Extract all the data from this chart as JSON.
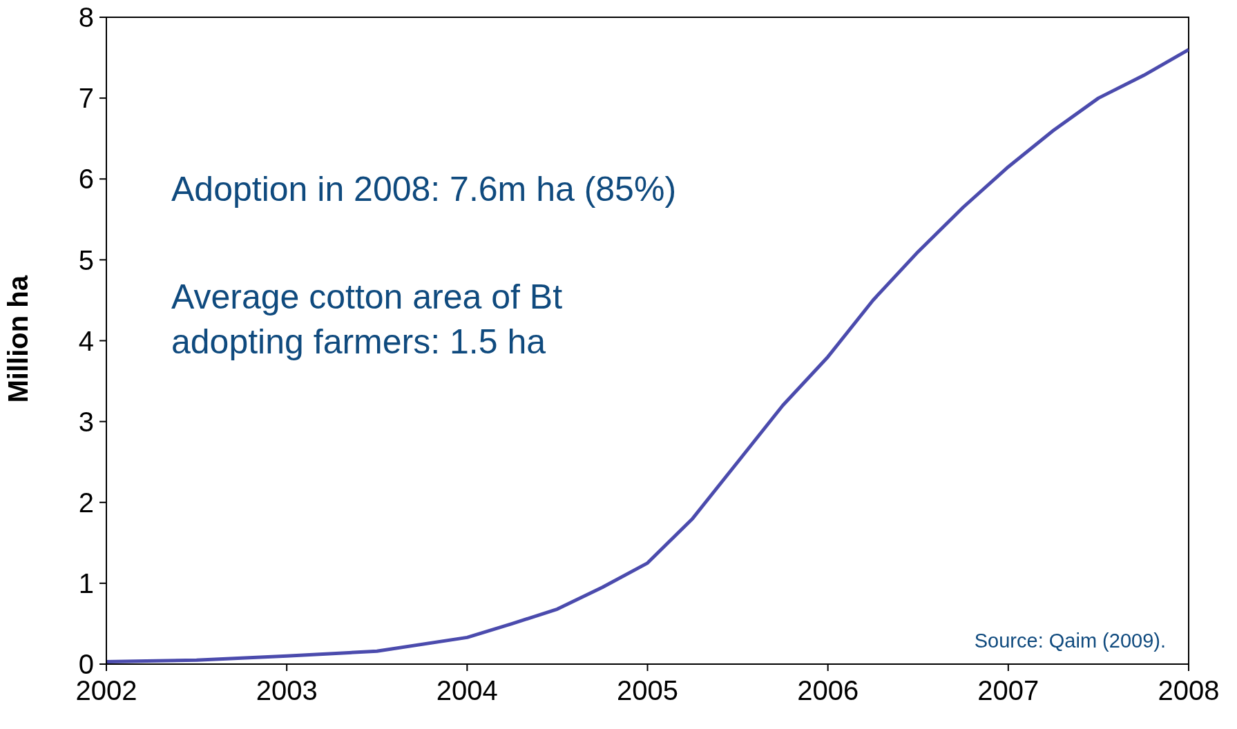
{
  "chart_data": {
    "type": "line",
    "ylabel": "Million ha",
    "x": [
      2002,
      2002.5,
      2003,
      2003.5,
      2004,
      2004.25,
      2004.5,
      2004.75,
      2005,
      2005.25,
      2005.5,
      2005.75,
      2006,
      2006.25,
      2006.5,
      2006.75,
      2007,
      2007.25,
      2007.5,
      2007.75,
      2008
    ],
    "series": [
      {
        "color": "#4b4bad",
        "values": [
          0.03,
          0.05,
          0.1,
          0.16,
          0.33,
          0.5,
          0.68,
          0.95,
          1.25,
          1.8,
          2.5,
          3.2,
          3.8,
          4.5,
          5.1,
          5.65,
          6.15,
          6.6,
          7.0,
          7.28,
          7.6
        ]
      }
    ],
    "xlim": [
      2002,
      2008
    ],
    "xticks": [
      2002,
      2003,
      2004,
      2005,
      2006,
      2007,
      2008
    ],
    "ylim": [
      0,
      8
    ],
    "yticks": [
      0,
      1,
      2,
      3,
      4,
      5,
      6,
      7,
      8
    ],
    "grid": false,
    "marker": "none",
    "line_style": "solid",
    "annotations": [
      "Adoption in 2008: 7.6m ha (85%)",
      "Average cotton area of Bt adopting farmers: 1.5 ha",
      "Source: Qaim (2009)."
    ]
  }
}
